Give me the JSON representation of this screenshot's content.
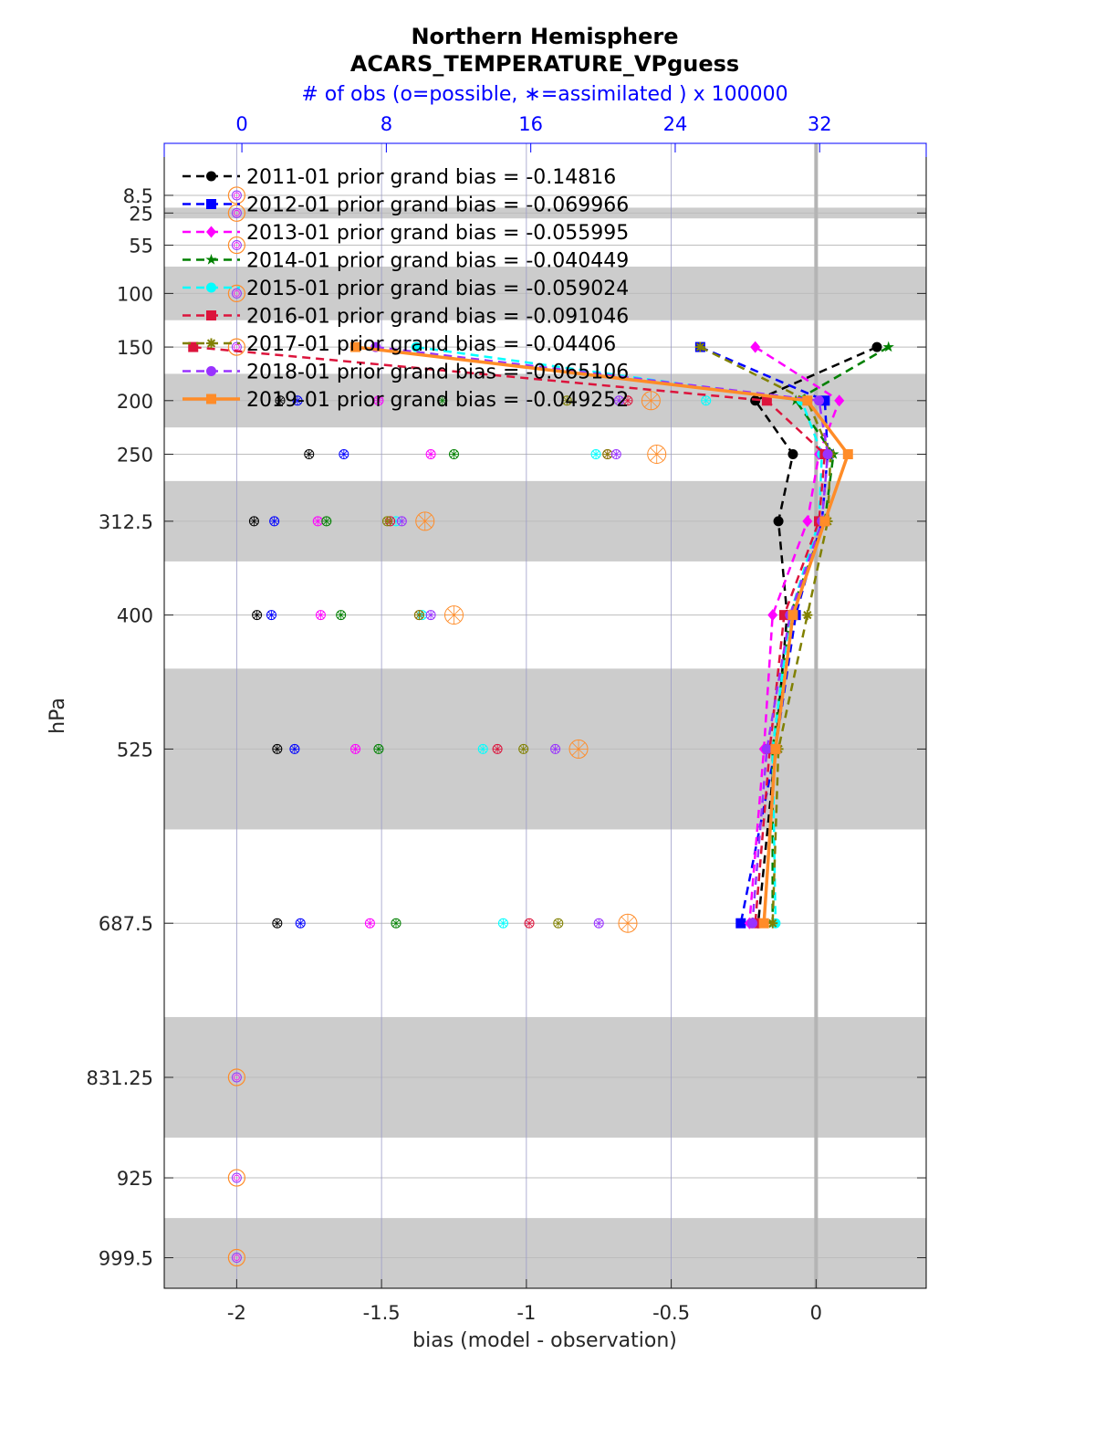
{
  "chart_data": {
    "type": "line",
    "title": "Northern Hemisphere",
    "subtitle": "ACARS_TEMPERATURE_VPguess",
    "top_axis_label": "# of obs (o=possible, ∗=assimilated ) x 100000",
    "top_ticks": [
      "0",
      "8",
      "16",
      "24",
      "32"
    ],
    "top_tick_values": [
      0,
      8,
      16,
      24,
      32
    ],
    "top_xlim": [
      -4.3,
      37.9
    ],
    "xlabel": "bias (model - observation)",
    "ylabel": "hPa",
    "xlim": [
      -2.25,
      0.38
    ],
    "x_ticks": [
      -2,
      -1.5,
      -1,
      -0.5,
      0
    ],
    "x_tick_labels": [
      "-2",
      "-1.5",
      "-1",
      "-0.5",
      "0"
    ],
    "ylim": [
      1028,
      -40
    ],
    "levels": [
      8.5,
      25,
      55,
      100,
      150,
      200,
      250,
      312.5,
      400,
      525,
      687.5,
      831.25,
      925,
      999.5
    ],
    "level_labels": [
      "8.5",
      "25",
      "55",
      "100",
      "150",
      "200",
      "250",
      "312.5",
      "400",
      "525",
      "687.5",
      "831.25",
      "925",
      "999.5"
    ],
    "shaded_bands": [
      [
        20,
        30
      ],
      [
        75,
        125
      ],
      [
        175,
        225
      ],
      [
        275,
        350
      ],
      [
        450,
        600
      ],
      [
        775,
        887.5
      ],
      [
        962.5,
        1028
      ]
    ],
    "possible_marker_levels": [
      8.5,
      25,
      55,
      100,
      150,
      831.25,
      925,
      999.5
    ],
    "possible_marker_x": -2,
    "series": [
      {
        "name": "2011-01 prior grand bias = -0.14816",
        "color": "#000000",
        "style": "dashed",
        "marker": "circle",
        "levels": [
          150,
          200,
          250,
          312.5,
          400,
          525,
          687.5
        ],
        "bias": [
          0.21,
          -0.21,
          -0.08,
          -0.13,
          -0.1,
          -0.14,
          -0.2
        ],
        "obs_levels": [
          200,
          250,
          312.5,
          400,
          525,
          687.5
        ],
        "obs": [
          -1.85,
          -1.75,
          -1.94,
          -1.93,
          -1.86,
          -1.86
        ]
      },
      {
        "name": "2012-01 prior grand bias = -0.069966",
        "color": "#0000ff",
        "style": "dashed",
        "marker": "square",
        "levels": [
          150,
          200,
          250,
          312.5,
          400,
          525,
          687.5
        ],
        "bias": [
          -0.4,
          0.03,
          0.04,
          0.02,
          -0.07,
          -0.14,
          -0.26
        ],
        "obs_levels": [
          200,
          250,
          312.5,
          400,
          525,
          687.5
        ],
        "obs": [
          -1.79,
          -1.63,
          -1.87,
          -1.88,
          -1.8,
          -1.78
        ]
      },
      {
        "name": "2013-01 prior grand bias = -0.055995",
        "color": "#ff00ff",
        "style": "dashed",
        "marker": "diamond",
        "levels": [
          150,
          200,
          250,
          312.5,
          400,
          525,
          687.5
        ],
        "bias": [
          -0.21,
          0.08,
          0.01,
          -0.03,
          -0.15,
          -0.18,
          -0.23
        ],
        "obs_levels": [
          200,
          250,
          312.5,
          400,
          525,
          687.5
        ],
        "obs": [
          -1.51,
          -1.33,
          -1.72,
          -1.71,
          -1.59,
          -1.54
        ]
      },
      {
        "name": "2014-01 prior grand bias = -0.040449",
        "color": "#008000",
        "style": "dashed",
        "marker": "star",
        "levels": [
          150,
          200,
          250,
          312.5,
          400,
          525,
          687.5
        ],
        "bias": [
          0.25,
          -0.07,
          0.06,
          0.03,
          -0.09,
          -0.15,
          -0.15
        ],
        "obs_levels": [
          200,
          250,
          312.5,
          400,
          525,
          687.5
        ],
        "obs": [
          -1.29,
          -1.25,
          -1.69,
          -1.64,
          -1.51,
          -1.45
        ]
      },
      {
        "name": "2015-01 prior grand bias = -0.059024",
        "color": "#00ffff",
        "style": "dashed",
        "marker": "circle",
        "levels": [
          150,
          200,
          250,
          312.5,
          400,
          525,
          687.5
        ],
        "bias": [
          -1.38,
          -0.05,
          0.02,
          0.01,
          -0.09,
          -0.15,
          -0.14
        ],
        "obs_levels": [
          200,
          250,
          312.5,
          400,
          525,
          687.5
        ],
        "obs": [
          -0.38,
          -0.76,
          -1.45,
          -1.36,
          -1.15,
          -1.08
        ]
      },
      {
        "name": "2016-01 prior grand bias = -0.091046",
        "color": "#dc143c",
        "style": "dashed",
        "marker": "square",
        "levels": [
          150,
          200,
          250,
          312.5,
          400,
          525,
          687.5
        ],
        "bias": [
          -2.15,
          -0.17,
          0.03,
          0.01,
          -0.11,
          -0.16,
          -0.21
        ],
        "obs_levels": [
          200,
          250,
          312.5,
          400,
          525,
          687.5
        ],
        "obs": [
          -0.65,
          -0.72,
          -1.47,
          -1.37,
          -1.1,
          -0.99
        ]
      },
      {
        "name": "2017-01 prior grand bias = -0.04406",
        "color": "#808000",
        "style": "dashed",
        "marker": "asterisk",
        "levels": [
          150,
          200,
          250,
          312.5,
          400,
          525,
          687.5
        ],
        "bias": [
          -0.4,
          -0.03,
          0.05,
          0.04,
          -0.03,
          -0.13,
          -0.15
        ],
        "obs_levels": [
          200,
          250,
          312.5,
          400,
          525,
          687.5
        ],
        "obs": [
          -0.86,
          -0.72,
          -1.48,
          -1.37,
          -1.01,
          -0.89
        ]
      },
      {
        "name": "2018-01 prior grand bias = -0.065106",
        "color": "#9932ff",
        "style": "dashed",
        "marker": "circle",
        "levels": [
          150,
          200,
          250,
          312.5,
          400,
          525,
          687.5
        ],
        "bias": [
          -1.52,
          0.01,
          0.04,
          0.02,
          -0.09,
          -0.17,
          -0.22
        ],
        "obs_levels": [
          200,
          250,
          312.5,
          400,
          525,
          687.5
        ],
        "obs": [
          -0.68,
          -0.69,
          -1.43,
          -1.33,
          -0.9,
          -0.75
        ]
      },
      {
        "name": "2019-01 prior grand bias = -0.049252",
        "color": "#ff8c28",
        "style": "solid",
        "marker": "square",
        "levels": [
          150,
          200,
          250,
          312.5,
          400,
          525,
          687.5
        ],
        "bias": [
          -1.59,
          -0.03,
          0.11,
          0.03,
          -0.08,
          -0.14,
          -0.18
        ],
        "obs_levels": [
          200,
          250,
          312.5,
          400,
          525,
          687.5
        ],
        "obs": [
          -0.57,
          -0.55,
          -1.35,
          -1.25,
          -0.82,
          -0.65
        ]
      }
    ]
  }
}
